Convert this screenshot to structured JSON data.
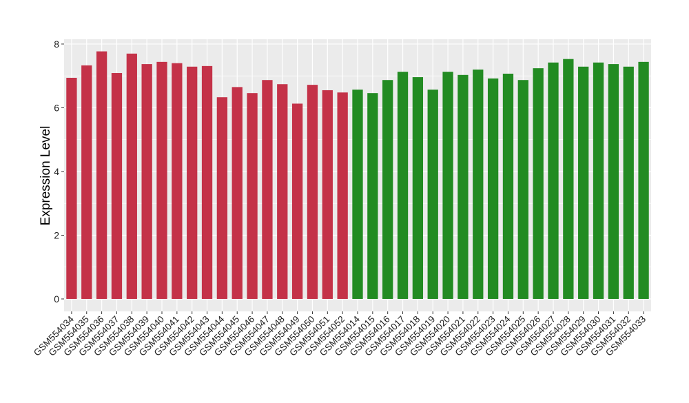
{
  "chart_data": {
    "type": "bar",
    "title": "",
    "xlabel": "",
    "ylabel": "Expression Level",
    "ylim": [
      -0.39,
      8.15
    ],
    "yticks": [
      0,
      2,
      4,
      6,
      8
    ],
    "grid": true,
    "legend": "none",
    "colors": {
      "group1": "#C43248",
      "group2": "#228B22",
      "panel": "#EBEBEB",
      "grid": "#FFFFFF"
    },
    "categories": [
      "GSM554034",
      "GSM554035",
      "GSM554036",
      "GSM554037",
      "GSM554038",
      "GSM554039",
      "GSM554040",
      "GSM554041",
      "GSM554042",
      "GSM554043",
      "GSM554044",
      "GSM554045",
      "GSM554046",
      "GSM554047",
      "GSM554048",
      "GSM554049",
      "GSM554050",
      "GSM554051",
      "GSM554052",
      "GSM554014",
      "GSM554015",
      "GSM554016",
      "GSM554017",
      "GSM554018",
      "GSM554019",
      "GSM554020",
      "GSM554021",
      "GSM554022",
      "GSM554023",
      "GSM554024",
      "GSM554025",
      "GSM554026",
      "GSM554027",
      "GSM554028",
      "GSM554029",
      "GSM554030",
      "GSM554031",
      "GSM554032",
      "GSM554033"
    ],
    "values": [
      6.94,
      7.33,
      7.77,
      7.09,
      7.7,
      7.37,
      7.44,
      7.4,
      7.29,
      7.31,
      6.33,
      6.65,
      6.46,
      6.87,
      6.74,
      6.13,
      6.72,
      6.55,
      6.48,
      6.57,
      6.46,
      6.87,
      7.13,
      6.96,
      6.57,
      7.13,
      7.03,
      7.2,
      6.92,
      7.07,
      6.87,
      7.24,
      7.42,
      7.53,
      7.29,
      7.42,
      7.37,
      7.29,
      7.44
    ],
    "groups": [
      "group1",
      "group1",
      "group1",
      "group1",
      "group1",
      "group1",
      "group1",
      "group1",
      "group1",
      "group1",
      "group1",
      "group1",
      "group1",
      "group1",
      "group1",
      "group1",
      "group1",
      "group1",
      "group1",
      "group2",
      "group2",
      "group2",
      "group2",
      "group2",
      "group2",
      "group2",
      "group2",
      "group2",
      "group2",
      "group2",
      "group2",
      "group2",
      "group2",
      "group2",
      "group2",
      "group2",
      "group2",
      "group2",
      "group2"
    ]
  }
}
